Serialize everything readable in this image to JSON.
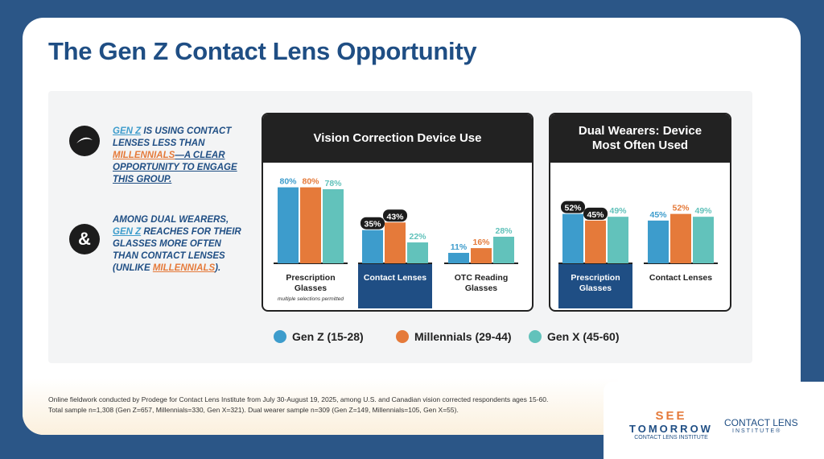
{
  "title": "The Gen Z Contact Lens Opportunity",
  "callouts": [
    {
      "parts": [
        {
          "text": "GEN Z",
          "style": "genz"
        },
        {
          "text": " IS USING CONTACT LENSES LESS THAN ",
          "style": "plain"
        },
        {
          "text": "MILLENNIALS",
          "style": "mill"
        },
        {
          "text": "—A CLEAR OPPORTUNITY TO ENGAGE THIS GROUP.",
          "style": "under"
        }
      ]
    },
    {
      "parts": [
        {
          "text": "AMONG DUAL WEARERS, ",
          "style": "plain"
        },
        {
          "text": "GEN Z",
          "style": "genz"
        },
        {
          "text": " REACHES FOR THEIR GLASSES MORE OFTEN THAN CONTACT LENSES (UNLIKE ",
          "style": "plain"
        },
        {
          "text": "MILLENNIALS",
          "style": "mill"
        },
        {
          "text": ").",
          "style": "plain"
        }
      ]
    }
  ],
  "chart_data": [
    {
      "type": "bar",
      "title": "Vision Correction Device Use",
      "note": "multiple selections permitted",
      "categories": [
        "Prescription Glasses",
        "Contact Lenses",
        "OTC Reading Glasses"
      ],
      "highlight_index": 1,
      "ylim": [
        0,
        100
      ],
      "series": [
        {
          "name": "Gen Z (15-28)",
          "color": "#3d9ccc",
          "values": [
            80,
            35,
            11
          ],
          "value_labels": [
            "80%",
            "35%",
            "11%"
          ],
          "boxed": [
            false,
            true,
            false
          ]
        },
        {
          "name": "Millennials (29-44)",
          "color": "#e57a3a",
          "values": [
            80,
            43,
            16
          ],
          "value_labels": [
            "80%",
            "43%",
            "16%"
          ],
          "boxed": [
            false,
            true,
            false
          ]
        },
        {
          "name": "Gen X  (45-60)",
          "color": "#62c2bb",
          "values": [
            78,
            22,
            28
          ],
          "value_labels": [
            "78%",
            "22%",
            "28%"
          ],
          "boxed": [
            false,
            false,
            false
          ]
        }
      ]
    },
    {
      "type": "bar",
      "title": "Dual Wearers: Device Most Often Used",
      "categories": [
        "Prescription Glasses",
        "Contact Lenses"
      ],
      "highlight_index": 0,
      "ylim": [
        0,
        100
      ],
      "series": [
        {
          "color": "#3d9ccc",
          "values": [
            52,
            45
          ],
          "value_labels": [
            "52%",
            "45%"
          ],
          "boxed": [
            true,
            false
          ]
        },
        {
          "color": "#e57a3a",
          "values": [
            45,
            52
          ],
          "value_labels": [
            "45%",
            "52%"
          ],
          "boxed": [
            true,
            false
          ]
        },
        {
          "color": "#62c2bb",
          "values": [
            49,
            49
          ],
          "value_labels": [
            "49%",
            "49%"
          ],
          "boxed": [
            false,
            false
          ]
        }
      ]
    }
  ],
  "footnote": [
    "Online fieldwork conducted by Prodege for Contact Lens Institute from July 30-August 19, 2025, among U.S. and Canadian vision corrected respondents ages 15-60.",
    "Total sample n=1,308 (Gen Z=657, Millennials=330, Gen X=321). Dual wearer sample n=309 (Gen Z=149, Millennials=105, Gen X=55)."
  ],
  "logos": {
    "see": "SEE",
    "tomorrow": "TOMORROW",
    "see_sub": "CONTACT LENS INSTITUTE",
    "cli": "CONTACT LENS",
    "cli_sub": "INSTITUTE®"
  }
}
